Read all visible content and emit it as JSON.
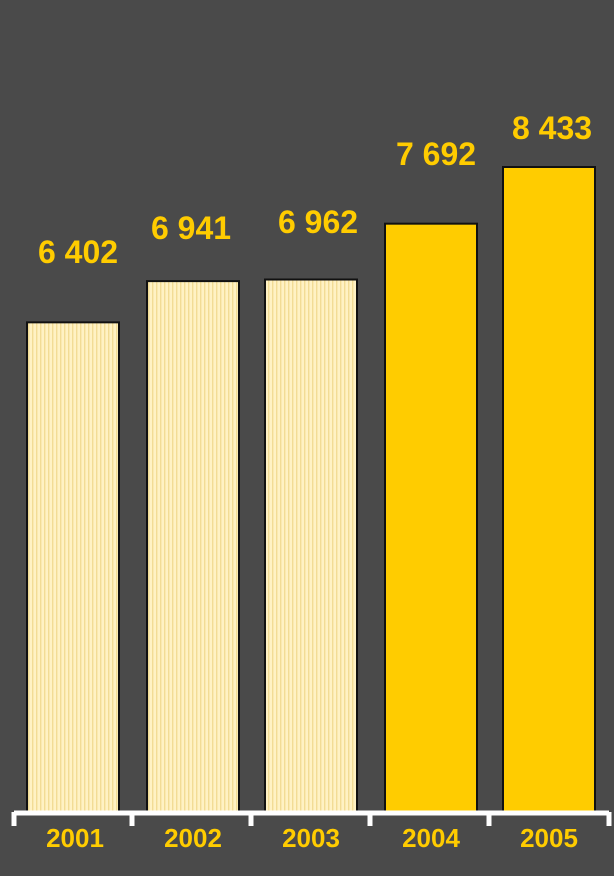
{
  "chart_data": {
    "type": "bar",
    "categories": [
      "2001",
      "2002",
      "2003",
      "2004",
      "2005"
    ],
    "values": [
      6402,
      6941,
      6962,
      7692,
      8433
    ],
    "value_labels": [
      "6 402",
      "6 941",
      "6 962",
      "7 692",
      "8 433"
    ],
    "ylim": [
      0,
      8433
    ],
    "grid": false,
    "title": "",
    "xlabel": "",
    "ylabel": "",
    "colors": {
      "background": "#4a4a4a",
      "label": "#ffcc00",
      "bar_highlight": "#ffcc00",
      "bar_muted": "#fff2c4",
      "bar_stripe": "#f2dc95",
      "bar_outline": "#111111",
      "axis": "#ffffff"
    },
    "bar_styles": [
      "muted",
      "muted",
      "muted",
      "highlight",
      "highlight"
    ]
  }
}
